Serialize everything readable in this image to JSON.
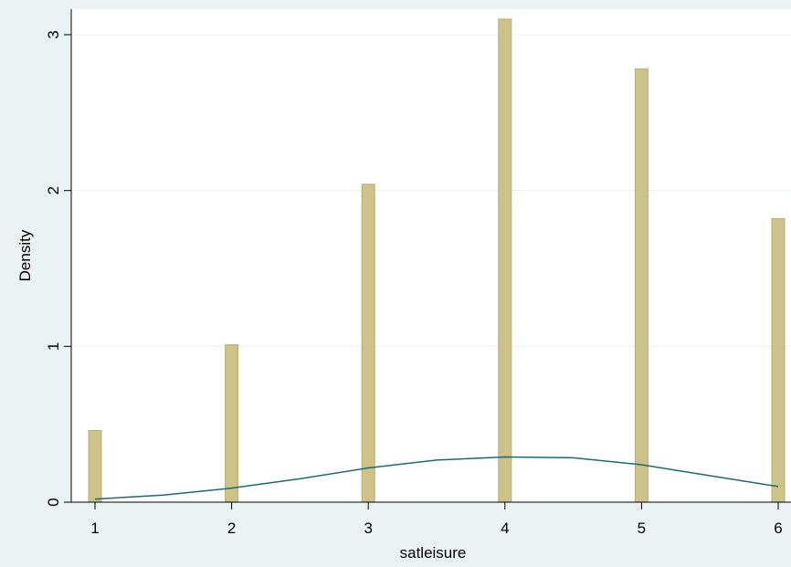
{
  "chart_data": {
    "type": "bar",
    "title": "",
    "xlabel": "satleisure",
    "ylabel": "Density",
    "xlim": [
      1,
      6
    ],
    "ylim": [
      0,
      3.2
    ],
    "x_ticks": [
      "1",
      "2",
      "3",
      "4",
      "5",
      "6"
    ],
    "y_ticks": [
      "0",
      "1",
      "2",
      "3"
    ],
    "grid": "horizontal",
    "series": [
      {
        "type": "bar",
        "x": [
          1,
          2,
          3,
          4,
          5,
          6
        ],
        "values": [
          0.46,
          1.01,
          2.04,
          3.1,
          2.78,
          1.82
        ],
        "color": "#cdc28a"
      },
      {
        "type": "line",
        "x": [
          1,
          1.5,
          2,
          2.5,
          3,
          3.5,
          4,
          4.5,
          5,
          5.5,
          6
        ],
        "values": [
          0.02,
          0.045,
          0.09,
          0.15,
          0.22,
          0.27,
          0.29,
          0.285,
          0.24,
          0.17,
          0.1
        ],
        "color": "#1f6b6b"
      }
    ]
  },
  "colors": {
    "background": "#eaf2f3",
    "plot_area": "#ffffff",
    "grid": "#eaf2f3",
    "bar_edge": "#b8ad72"
  }
}
